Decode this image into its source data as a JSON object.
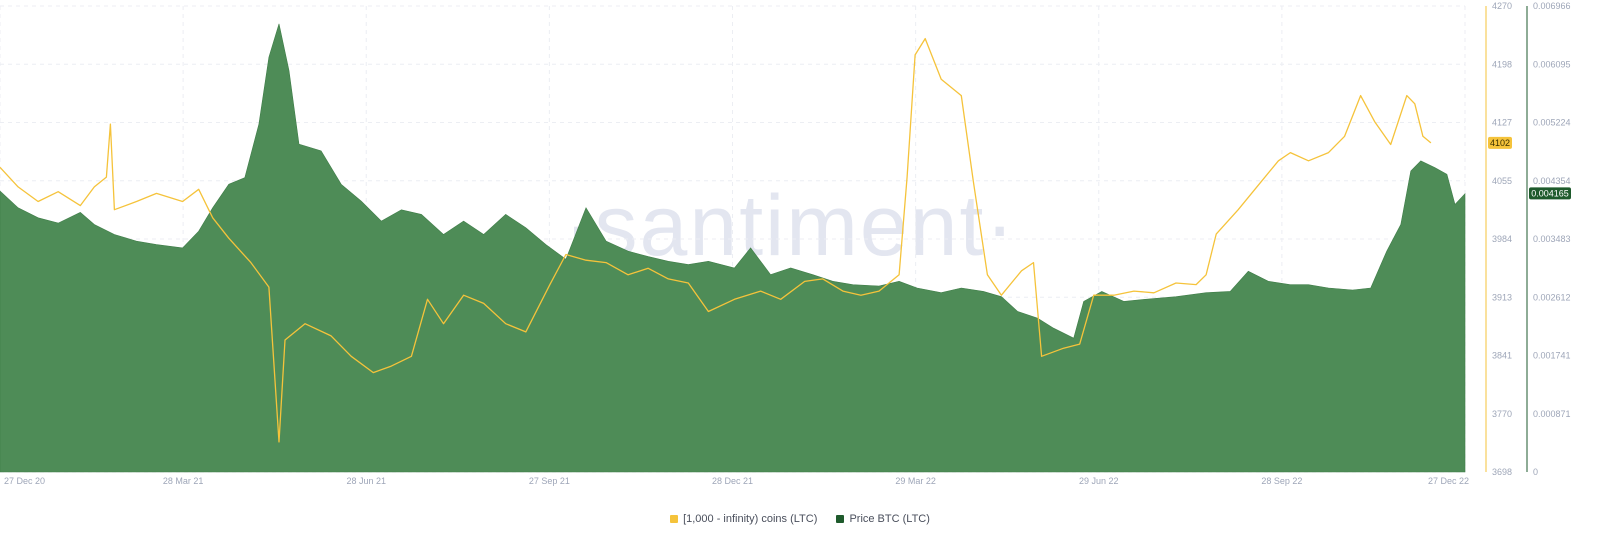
{
  "chart_data": {
    "type": "area+line",
    "watermark": "·santiment·",
    "x_ticks": [
      "27 Dec 20",
      "28 Mar 21",
      "28 Jun 21",
      "27 Sep 21",
      "28 Dec 21",
      "29 Mar 22",
      "29 Jun 22",
      "28 Sep 22",
      "27 Dec 22"
    ],
    "x_range": [
      "2020-12-27",
      "2022-12-27"
    ],
    "y_left": {
      "ticks": [
        "4270",
        "4198",
        "4127",
        "4055",
        "3984",
        "3913",
        "3841",
        "3770",
        "3698"
      ],
      "range": [
        3698,
        4270
      ],
      "current_label": "4102",
      "current_value": 4102
    },
    "y_right": {
      "ticks": [
        "0.006966",
        "0.006095",
        "0.005224",
        "0.004354",
        "0.003483",
        "0.002612",
        "0.001741",
        "0.000871",
        "0"
      ],
      "range": [
        0,
        0.006966
      ],
      "current_label": "0.004165",
      "current_value": 0.004165
    },
    "series": [
      {
        "name": "[1,000 - infinity) coins (LTC)",
        "kind": "line",
        "axis": "left",
        "color": "#f5c33b",
        "points": [
          [
            "2020-12-27",
            4072
          ],
          [
            "2021-01-05",
            4048
          ],
          [
            "2021-01-15",
            4030
          ],
          [
            "2021-01-25",
            4042
          ],
          [
            "2021-02-05",
            4025
          ],
          [
            "2021-02-12",
            4048
          ],
          [
            "2021-02-18",
            4060
          ],
          [
            "2021-02-20",
            4125
          ],
          [
            "2021-02-22",
            4020
          ],
          [
            "2021-03-05",
            4030
          ],
          [
            "2021-03-15",
            4040
          ],
          [
            "2021-03-28",
            4030
          ],
          [
            "2021-04-05",
            4045
          ],
          [
            "2021-04-12",
            4010
          ],
          [
            "2021-04-20",
            3985
          ],
          [
            "2021-05-01",
            3955
          ],
          [
            "2021-05-10",
            3925
          ],
          [
            "2021-05-15",
            3735
          ],
          [
            "2021-05-18",
            3860
          ],
          [
            "2021-05-28",
            3880
          ],
          [
            "2021-06-10",
            3865
          ],
          [
            "2021-06-20",
            3840
          ],
          [
            "2021-07-01",
            3820
          ],
          [
            "2021-07-10",
            3828
          ],
          [
            "2021-07-20",
            3840
          ],
          [
            "2021-07-28",
            3910
          ],
          [
            "2021-08-05",
            3880
          ],
          [
            "2021-08-15",
            3915
          ],
          [
            "2021-08-25",
            3905
          ],
          [
            "2021-09-05",
            3880
          ],
          [
            "2021-09-15",
            3870
          ],
          [
            "2021-09-27",
            3928
          ],
          [
            "2021-10-05",
            3965
          ],
          [
            "2021-10-15",
            3958
          ],
          [
            "2021-10-25",
            3955
          ],
          [
            "2021-11-05",
            3940
          ],
          [
            "2021-11-15",
            3948
          ],
          [
            "2021-11-25",
            3935
          ],
          [
            "2021-12-05",
            3930
          ],
          [
            "2021-12-15",
            3895
          ],
          [
            "2021-12-28",
            3910
          ],
          [
            "2022-01-10",
            3920
          ],
          [
            "2022-01-20",
            3910
          ],
          [
            "2022-02-01",
            3932
          ],
          [
            "2022-02-10",
            3935
          ],
          [
            "2022-02-20",
            3920
          ],
          [
            "2022-03-01",
            3915
          ],
          [
            "2022-03-10",
            3920
          ],
          [
            "2022-03-20",
            3940
          ],
          [
            "2022-03-24",
            4060
          ],
          [
            "2022-03-28",
            4210
          ],
          [
            "2022-04-02",
            4230
          ],
          [
            "2022-04-10",
            4180
          ],
          [
            "2022-04-20",
            4160
          ],
          [
            "2022-04-26",
            4055
          ],
          [
            "2022-05-03",
            3940
          ],
          [
            "2022-05-10",
            3915
          ],
          [
            "2022-05-20",
            3945
          ],
          [
            "2022-05-26",
            3955
          ],
          [
            "2022-05-30",
            3840
          ],
          [
            "2022-06-10",
            3850
          ],
          [
            "2022-06-18",
            3855
          ],
          [
            "2022-06-25",
            3915
          ],
          [
            "2022-07-05",
            3915
          ],
          [
            "2022-07-15",
            3920
          ],
          [
            "2022-07-25",
            3918
          ],
          [
            "2022-08-05",
            3930
          ],
          [
            "2022-08-15",
            3928
          ],
          [
            "2022-08-20",
            3940
          ],
          [
            "2022-08-25",
            3990
          ],
          [
            "2022-09-05",
            4020
          ],
          [
            "2022-09-15",
            4050
          ],
          [
            "2022-09-25",
            4080
          ],
          [
            "2022-10-01",
            4090
          ],
          [
            "2022-10-10",
            4080
          ],
          [
            "2022-10-20",
            4090
          ],
          [
            "2022-10-28",
            4110
          ],
          [
            "2022-11-05",
            4160
          ],
          [
            "2022-11-12",
            4128
          ],
          [
            "2022-11-20",
            4100
          ],
          [
            "2022-11-28",
            4160
          ],
          [
            "2022-12-02",
            4150
          ],
          [
            "2022-12-06",
            4110
          ],
          [
            "2022-12-10",
            4102
          ]
        ]
      },
      {
        "name": "Price BTC (LTC)",
        "kind": "area",
        "axis": "right",
        "color": "#4e8c57",
        "points": [
          [
            "2020-12-27",
            0.0042
          ],
          [
            "2021-01-05",
            0.00395
          ],
          [
            "2021-01-15",
            0.0038
          ],
          [
            "2021-01-25",
            0.00372
          ],
          [
            "2021-02-05",
            0.00388
          ],
          [
            "2021-02-12",
            0.0037
          ],
          [
            "2021-02-22",
            0.00355
          ],
          [
            "2021-03-05",
            0.00345
          ],
          [
            "2021-03-15",
            0.0034
          ],
          [
            "2021-03-28",
            0.00335
          ],
          [
            "2021-04-05",
            0.0036
          ],
          [
            "2021-04-12",
            0.00395
          ],
          [
            "2021-04-20",
            0.0043
          ],
          [
            "2021-04-28",
            0.0044
          ],
          [
            "2021-05-05",
            0.0052
          ],
          [
            "2021-05-10",
            0.0062
          ],
          [
            "2021-05-15",
            0.0067
          ],
          [
            "2021-05-20",
            0.006
          ],
          [
            "2021-05-25",
            0.0049
          ],
          [
            "2021-06-05",
            0.0048
          ],
          [
            "2021-06-15",
            0.0043
          ],
          [
            "2021-06-25",
            0.00405
          ],
          [
            "2021-07-05",
            0.00375
          ],
          [
            "2021-07-15",
            0.00392
          ],
          [
            "2021-07-25",
            0.00385
          ],
          [
            "2021-08-05",
            0.00355
          ],
          [
            "2021-08-15",
            0.00375
          ],
          [
            "2021-08-25",
            0.00355
          ],
          [
            "2021-09-05",
            0.00385
          ],
          [
            "2021-09-15",
            0.00365
          ],
          [
            "2021-09-25",
            0.0034
          ],
          [
            "2021-10-05",
            0.00318
          ],
          [
            "2021-10-15",
            0.00395
          ],
          [
            "2021-10-25",
            0.00345
          ],
          [
            "2021-11-05",
            0.0033
          ],
          [
            "2021-11-15",
            0.00322
          ],
          [
            "2021-11-25",
            0.00315
          ],
          [
            "2021-12-05",
            0.0031
          ],
          [
            "2021-12-15",
            0.00315
          ],
          [
            "2021-12-28",
            0.00305
          ],
          [
            "2022-01-05",
            0.00335
          ],
          [
            "2022-01-15",
            0.00295
          ],
          [
            "2022-01-25",
            0.00305
          ],
          [
            "2022-02-05",
            0.00295
          ],
          [
            "2022-02-15",
            0.00285
          ],
          [
            "2022-02-25",
            0.0028
          ],
          [
            "2022-03-10",
            0.00278
          ],
          [
            "2022-03-20",
            0.00285
          ],
          [
            "2022-03-29",
            0.00275
          ],
          [
            "2022-04-10",
            0.00268
          ],
          [
            "2022-04-20",
            0.00275
          ],
          [
            "2022-05-01",
            0.0027
          ],
          [
            "2022-05-10",
            0.00262
          ],
          [
            "2022-05-18",
            0.0024
          ],
          [
            "2022-05-28",
            0.0023
          ],
          [
            "2022-06-05",
            0.00215
          ],
          [
            "2022-06-15",
            0.002
          ],
          [
            "2022-06-20",
            0.00255
          ],
          [
            "2022-06-29",
            0.0027
          ],
          [
            "2022-07-10",
            0.00255
          ],
          [
            "2022-07-20",
            0.00258
          ],
          [
            "2022-08-05",
            0.00262
          ],
          [
            "2022-08-20",
            0.00268
          ],
          [
            "2022-09-01",
            0.0027
          ],
          [
            "2022-09-10",
            0.003
          ],
          [
            "2022-09-20",
            0.00285
          ],
          [
            "2022-10-01",
            0.0028
          ],
          [
            "2022-10-10",
            0.0028
          ],
          [
            "2022-10-20",
            0.00275
          ],
          [
            "2022-11-01",
            0.00272
          ],
          [
            "2022-11-10",
            0.00275
          ],
          [
            "2022-11-18",
            0.0033
          ],
          [
            "2022-11-25",
            0.0037
          ],
          [
            "2022-11-30",
            0.0045
          ],
          [
            "2022-12-05",
            0.00465
          ],
          [
            "2022-12-12",
            0.00455
          ],
          [
            "2022-12-18",
            0.00445
          ],
          [
            "2022-12-22",
            0.004
          ],
          [
            "2022-12-27",
            0.00416
          ]
        ]
      }
    ],
    "legend": [
      {
        "label": "[1,000 - infinity) coins (LTC)",
        "color": "#f5c33b"
      },
      {
        "label": "Price BTC (LTC)",
        "color": "#1e5a2c"
      }
    ],
    "legend_position": "bottom-center",
    "grid": true
  }
}
